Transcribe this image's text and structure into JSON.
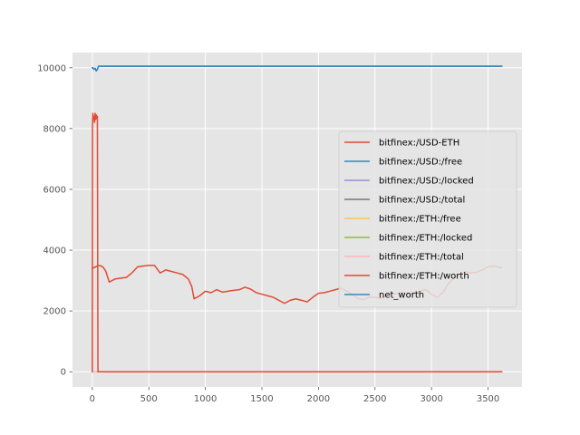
{
  "chart_data": {
    "type": "line",
    "title": "",
    "xlabel": "",
    "ylabel": "",
    "xlim": [
      -175,
      3800
    ],
    "ylim": [
      -500,
      10500
    ],
    "grid": true,
    "legend_position": "center-right",
    "xticks": [
      0,
      500,
      1000,
      1500,
      2000,
      2500,
      3000,
      3500
    ],
    "yticks": [
      0,
      2000,
      4000,
      6000,
      8000,
      10000
    ],
    "xtick_labels": [
      "0",
      "500",
      "1000",
      "1500",
      "2000",
      "2500",
      "3000",
      "3500"
    ],
    "ytick_labels": [
      "0",
      "2000",
      "4000",
      "6000",
      "8000",
      "10000"
    ],
    "series": [
      {
        "name": "bitfinex:/USD-ETH",
        "color": "#E24A33",
        "x": [
          0,
          10,
          30,
          50,
          80,
          100,
          120,
          150,
          200,
          250,
          300,
          350,
          400,
          450,
          500,
          550,
          600,
          650,
          700,
          750,
          800,
          850,
          880,
          900,
          950,
          1000,
          1050,
          1100,
          1150,
          1200,
          1250,
          1300,
          1350,
          1400,
          1450,
          1500,
          1550,
          1600,
          1650,
          1700,
          1750,
          1800,
          1850,
          1900,
          1950,
          2000,
          2050,
          2100,
          2150,
          2200,
          2250,
          2300,
          2350,
          2400,
          2450,
          2500,
          2550,
          2600,
          2650,
          2700,
          2750,
          2800,
          2850,
          2900,
          2950,
          3000,
          3050,
          3100,
          3150,
          3200,
          3250,
          3300,
          3350,
          3400,
          3450,
          3500,
          3550,
          3620
        ],
        "values": [
          3400,
          3420,
          3450,
          3500,
          3480,
          3420,
          3300,
          2950,
          3050,
          3080,
          3100,
          3250,
          3450,
          3480,
          3500,
          3500,
          3250,
          3350,
          3300,
          3250,
          3200,
          3050,
          2800,
          2400,
          2500,
          2650,
          2600,
          2700,
          2620,
          2650,
          2680,
          2700,
          2780,
          2720,
          2600,
          2550,
          2500,
          2450,
          2350,
          2250,
          2350,
          2400,
          2350,
          2300,
          2450,
          2580,
          2600,
          2650,
          2700,
          2750,
          2650,
          2550,
          2400,
          2380,
          2450,
          2450,
          2420,
          2500,
          2550,
          2580,
          2600,
          2550,
          2620,
          2650,
          2700,
          2550,
          2450,
          2600,
          2900,
          3100,
          3200,
          3300,
          3250,
          3280,
          3350,
          3450,
          3480,
          3420
        ]
      },
      {
        "name": "bitfinex:/USD:/free",
        "color": "#348ABD",
        "x": [
          0,
          5,
          15,
          25,
          35,
          45,
          55,
          3620
        ],
        "values": [
          10000,
          10000,
          9950,
          9980,
          9900,
          9950,
          10050,
          10050
        ]
      },
      {
        "name": "bitfinex:/USD:/locked",
        "color": "#988ED5",
        "x": [
          0,
          3620
        ],
        "values": [
          0,
          0
        ]
      },
      {
        "name": "bitfinex:/USD:/total",
        "color": "#777777",
        "x": [
          0,
          5,
          15,
          25,
          35,
          45,
          55,
          3620
        ],
        "values": [
          10000,
          10000,
          9950,
          9980,
          9900,
          9950,
          10050,
          10050
        ]
      },
      {
        "name": "bitfinex:/ETH:/free",
        "color": "#FBC15E",
        "x": [
          0,
          3620
        ],
        "values": [
          0,
          0
        ]
      },
      {
        "name": "bitfinex:/ETH:/locked",
        "color": "#8EBA42",
        "x": [
          0,
          3620
        ],
        "values": [
          0,
          0
        ]
      },
      {
        "name": "bitfinex:/ETH:/total",
        "color": "#FFB5B8",
        "x": [
          0,
          3620
        ],
        "values": [
          0,
          0
        ]
      },
      {
        "name": "bitfinex:/ETH:/worth",
        "color": "#E24A33",
        "x": [
          0,
          2,
          5,
          10,
          15,
          20,
          25,
          30,
          35,
          40,
          45,
          50,
          55,
          3620
        ],
        "values": [
          0,
          8000,
          8500,
          8300,
          8400,
          8200,
          8500,
          8300,
          8450,
          8350,
          8400,
          0,
          0,
          0
        ]
      },
      {
        "name": "net_worth",
        "color": "#348ABD",
        "x": [
          0,
          5,
          15,
          25,
          35,
          45,
          55,
          3620
        ],
        "values": [
          10000,
          10000,
          9950,
          9980,
          9900,
          9950,
          10050,
          10050
        ]
      }
    ]
  }
}
